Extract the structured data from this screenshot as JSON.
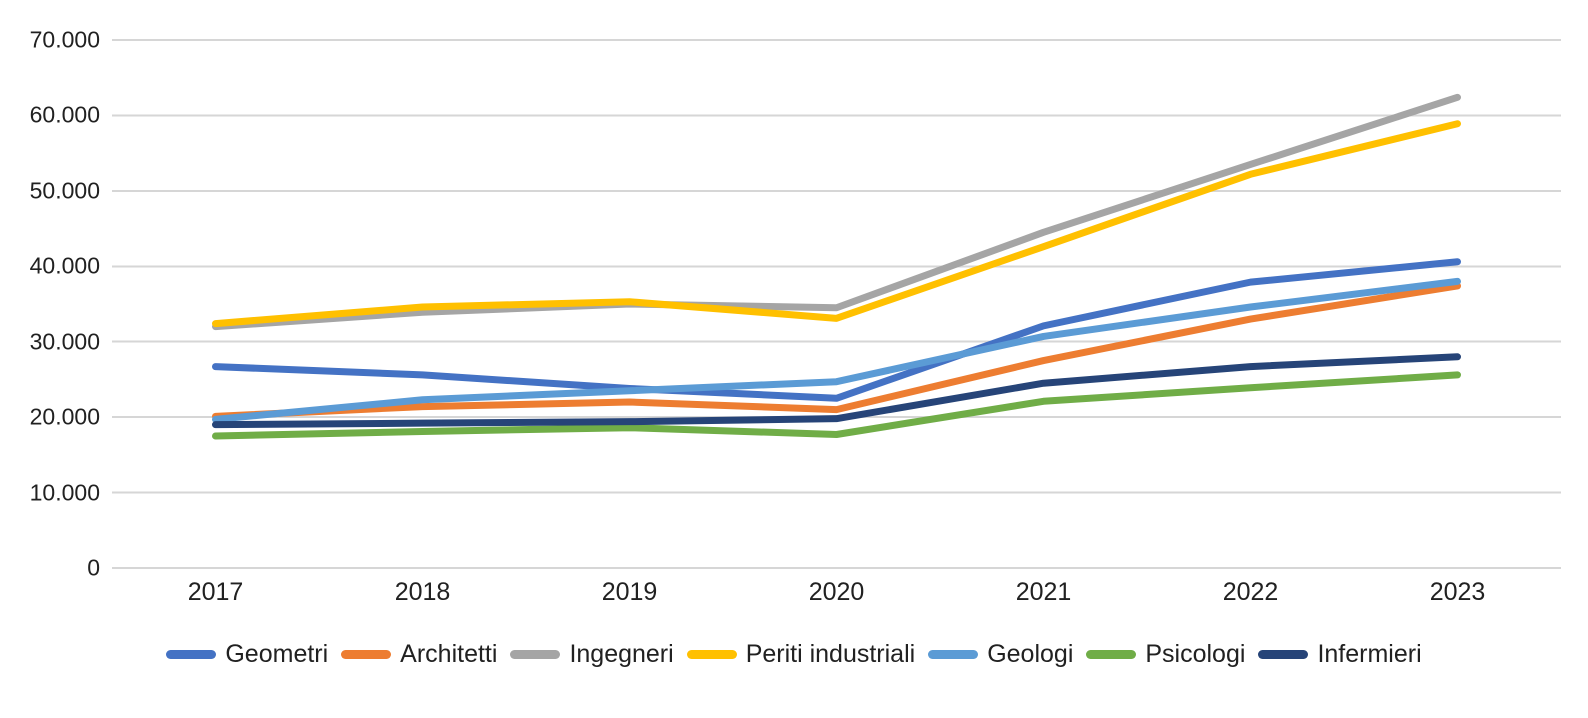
{
  "chart_data": {
    "type": "line",
    "title": "",
    "categories": [
      "2017",
      "2018",
      "2019",
      "2020",
      "2021",
      "2022",
      "2023"
    ],
    "series": [
      {
        "name": "Geometri",
        "color": "#4472C4",
        "values": [
          26700,
          25600,
          23800,
          22500,
          32100,
          37900,
          40600
        ]
      },
      {
        "name": "Architetti",
        "color": "#ED7D31",
        "values": [
          20100,
          21400,
          22000,
          21000,
          27500,
          33000,
          37400
        ]
      },
      {
        "name": "Ingegneri",
        "color": "#A5A5A5",
        "values": [
          32000,
          33900,
          35000,
          34500,
          44500,
          53500,
          62400
        ]
      },
      {
        "name": "Periti industriali",
        "color": "#FFC000",
        "values": [
          32400,
          34600,
          35300,
          33100,
          42600,
          52200,
          58900
        ]
      },
      {
        "name": "Geologi",
        "color": "#5B9BD5",
        "values": [
          19700,
          22300,
          23500,
          24700,
          30700,
          34600,
          38000
        ]
      },
      {
        "name": "Psicologi",
        "color": "#70AD47",
        "values": [
          17500,
          18100,
          18600,
          17700,
          22100,
          23900,
          25600
        ]
      },
      {
        "name": "Infermieri",
        "color": "#264478",
        "values": [
          19000,
          19200,
          19400,
          19800,
          24500,
          26700,
          28000
        ]
      }
    ],
    "ylim": [
      0,
      70000
    ],
    "ytick_step": 10000,
    "ytick_labels": [
      "0",
      "10.000",
      "20.000",
      "30.000",
      "40.000",
      "50.000",
      "60.000",
      "70.000"
    ],
    "xlabel": "",
    "ylabel": "",
    "grid": true,
    "legend_position": "bottom"
  },
  "colors": {
    "gridline": "#D6D6D6",
    "text": "#212121",
    "background": "#FFFFFF"
  }
}
